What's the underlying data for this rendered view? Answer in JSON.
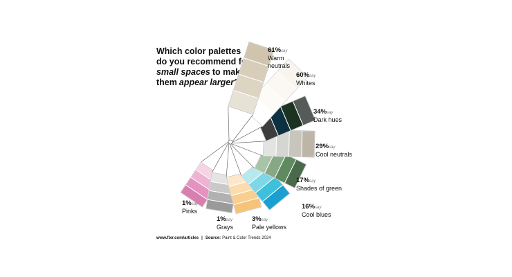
{
  "chart_data": {
    "type": "fan",
    "title": [
      "Which color palettes",
      "do you recommend for",
      "small spaces",
      "to make",
      "them",
      "appear larger",
      "?"
    ],
    "categories": [
      "Warm neutrals",
      "Whites",
      "Dark hues",
      "Cool neutrals",
      "Shades of green",
      "Cool blues",
      "Pale yellows",
      "Grays",
      "Pinks"
    ],
    "values": [
      61,
      60,
      34,
      29,
      17,
      16,
      3,
      1,
      1
    ],
    "value_labels": [
      "61%",
      "60%",
      "34%",
      "29%",
      "17%",
      "16%",
      "3%",
      "1%",
      "1%"
    ],
    "value_suffix": "say",
    "colors": [
      [
        "#e6e2d6",
        "#ddd4c2",
        "#d8cdb8",
        "#d0c4ae"
      ],
      [
        "#ffffff",
        "#fdfbf8",
        "#fbf8f3",
        "#f8f4ee"
      ],
      [
        "#3d3d3d",
        "#0d3140",
        "#1b3320",
        "#555b57"
      ],
      [
        "#e2e4e1",
        "#d5d6d1",
        "#c8c5bd",
        "#bdb5a8"
      ],
      [
        "#a8c4a6",
        "#86a884",
        "#5f8a5f",
        "#4a6a4c"
      ],
      [
        "#b6e8ef",
        "#7fd6e6",
        "#3cc0dc",
        "#1aa0d0"
      ],
      [
        "#fde7cb",
        "#fbdcad",
        "#f8cf8e",
        "#f6c379"
      ],
      [
        "#e4e4e4",
        "#c9c9c9",
        "#b1b1b1",
        "#9a9a9a"
      ],
      [
        "#f7d3e6",
        "#eeb3d2",
        "#e492bf",
        "#d87fb0"
      ]
    ],
    "footer": {
      "site": "www.fixr.com/articles",
      "separator": "|",
      "source_label": "Source:",
      "source": "Paint & Color Trends 2024"
    }
  }
}
